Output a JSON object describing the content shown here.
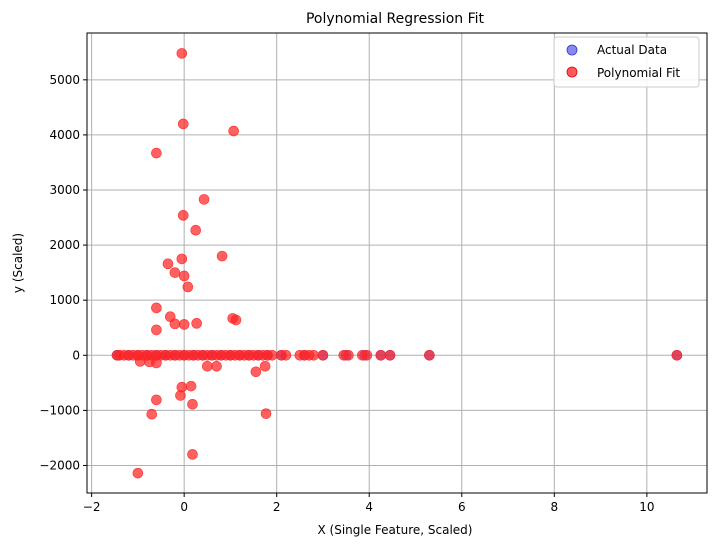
{
  "chart_data": {
    "type": "scatter",
    "title": "Polynomial Regression Fit",
    "xlabel": "X (Single Feature, Scaled)",
    "ylabel": "y (Scaled)",
    "xlim": [
      -2.1,
      11.3
    ],
    "ylim": [
      -2500,
      5850
    ],
    "xticks": [
      -2,
      0,
      2,
      4,
      6,
      8,
      10
    ],
    "yticks": [
      -2000,
      -1000,
      0,
      1000,
      2000,
      3000,
      4000,
      5000
    ],
    "xtick_labels": [
      "−2",
      "0",
      "2",
      "4",
      "6",
      "8",
      "10"
    ],
    "ytick_labels": [
      "−2000",
      "−1000",
      "0",
      "1000",
      "2000",
      "3000",
      "4000",
      "5000"
    ],
    "grid": true,
    "legend_position": "top-right",
    "series": [
      {
        "name": "Actual Data",
        "color": "#5555e8",
        "points": [
          [
            -1.45,
            0
          ],
          [
            -1.2,
            0
          ],
          [
            -1.0,
            0
          ],
          [
            -0.8,
            0
          ],
          [
            -0.6,
            0
          ],
          [
            -0.4,
            0
          ],
          [
            -0.2,
            0
          ],
          [
            0.0,
            0
          ],
          [
            0.2,
            0
          ],
          [
            0.4,
            0
          ],
          [
            0.6,
            0
          ],
          [
            0.8,
            0
          ],
          [
            1.0,
            0
          ],
          [
            1.2,
            0
          ],
          [
            1.4,
            0
          ],
          [
            1.6,
            0
          ],
          [
            1.8,
            0
          ],
          [
            2.1,
            0
          ],
          [
            2.6,
            0
          ],
          [
            3.0,
            0
          ],
          [
            3.5,
            0
          ],
          [
            3.9,
            0
          ],
          [
            4.25,
            0
          ],
          [
            4.45,
            0
          ],
          [
            5.3,
            0
          ],
          [
            10.65,
            0
          ]
        ]
      },
      {
        "name": "Polynomial Fit",
        "color": "#ff2222",
        "points": [
          [
            -0.05,
            5480
          ],
          [
            -0.02,
            4200
          ],
          [
            1.07,
            4070
          ],
          [
            -0.6,
            3670
          ],
          [
            0.43,
            2830
          ],
          [
            -0.02,
            2540
          ],
          [
            0.25,
            2270
          ],
          [
            0.82,
            1800
          ],
          [
            -0.05,
            1750
          ],
          [
            -0.35,
            1660
          ],
          [
            -0.2,
            1500
          ],
          [
            0.0,
            1440
          ],
          [
            0.08,
            1240
          ],
          [
            -0.6,
            860
          ],
          [
            -0.3,
            700
          ],
          [
            1.05,
            670
          ],
          [
            1.12,
            640
          ],
          [
            0.27,
            580
          ],
          [
            -0.2,
            570
          ],
          [
            0.0,
            560
          ],
          [
            -0.6,
            460
          ],
          [
            -0.95,
            -110
          ],
          [
            -0.75,
            -120
          ],
          [
            -0.6,
            -140
          ],
          [
            0.5,
            -200
          ],
          [
            0.7,
            -200
          ],
          [
            1.75,
            -200
          ],
          [
            1.55,
            -300
          ],
          [
            -0.05,
            -580
          ],
          [
            0.15,
            -560
          ],
          [
            -0.08,
            -730
          ],
          [
            -0.6,
            -810
          ],
          [
            0.18,
            -890
          ],
          [
            -0.7,
            -1070
          ],
          [
            1.77,
            -1060
          ],
          [
            0.18,
            -1800
          ],
          [
            -1.0,
            -2140
          ],
          [
            -1.45,
            0
          ],
          [
            -1.4,
            0
          ],
          [
            -1.3,
            0
          ],
          [
            -1.2,
            0
          ],
          [
            -1.1,
            0
          ],
          [
            -1.0,
            0
          ],
          [
            -0.9,
            0
          ],
          [
            -0.8,
            0
          ],
          [
            -0.7,
            0
          ],
          [
            -0.6,
            0
          ],
          [
            -0.5,
            0
          ],
          [
            -0.4,
            0
          ],
          [
            -0.3,
            0
          ],
          [
            -0.2,
            0
          ],
          [
            -0.1,
            0
          ],
          [
            0.0,
            0
          ],
          [
            0.1,
            0
          ],
          [
            0.2,
            0
          ],
          [
            0.3,
            0
          ],
          [
            0.4,
            0
          ],
          [
            0.5,
            0
          ],
          [
            0.6,
            0
          ],
          [
            0.7,
            0
          ],
          [
            0.8,
            0
          ],
          [
            0.9,
            0
          ],
          [
            1.0,
            0
          ],
          [
            1.1,
            0
          ],
          [
            1.2,
            0
          ],
          [
            1.3,
            0
          ],
          [
            1.4,
            0
          ],
          [
            1.5,
            0
          ],
          [
            1.6,
            0
          ],
          [
            1.7,
            0
          ],
          [
            1.8,
            0
          ],
          [
            1.9,
            0
          ],
          [
            2.1,
            0
          ],
          [
            2.2,
            0
          ],
          [
            2.5,
            0
          ],
          [
            2.6,
            0
          ],
          [
            2.7,
            0
          ],
          [
            2.8,
            0
          ],
          [
            3.0,
            0
          ],
          [
            3.45,
            0
          ],
          [
            3.55,
            0
          ],
          [
            3.85,
            0
          ],
          [
            3.95,
            0
          ],
          [
            4.25,
            0
          ],
          [
            4.45,
            0
          ],
          [
            5.3,
            0
          ],
          [
            10.65,
            0
          ]
        ]
      }
    ]
  }
}
